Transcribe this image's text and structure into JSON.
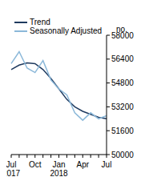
{
  "chart_data": {
    "type": "line",
    "y_label": "no.",
    "categories": [
      "Jul 2017",
      null,
      null,
      "Oct",
      null,
      null,
      "Jan 2018",
      null,
      null,
      "Apr",
      null,
      null,
      "Jul"
    ],
    "series": [
      {
        "name": "Trend",
        "color": "#1f3a5f",
        "values": [
          55700,
          56000,
          56150,
          56100,
          55700,
          55100,
          54400,
          53700,
          53200,
          52900,
          52700,
          52500,
          52400
        ]
      },
      {
        "name": "Seasonally Adjusted",
        "color": "#8bb8d9",
        "values": [
          56100,
          56900,
          55800,
          55500,
          56300,
          55000,
          54400,
          54000,
          52800,
          52300,
          52800,
          52400,
          52600
        ]
      }
    ],
    "ylim": [
      50000,
      58000
    ],
    "yticks": [
      50000,
      51600,
      53200,
      54800,
      56400,
      58000
    ],
    "grid": false,
    "legend": "top left"
  }
}
